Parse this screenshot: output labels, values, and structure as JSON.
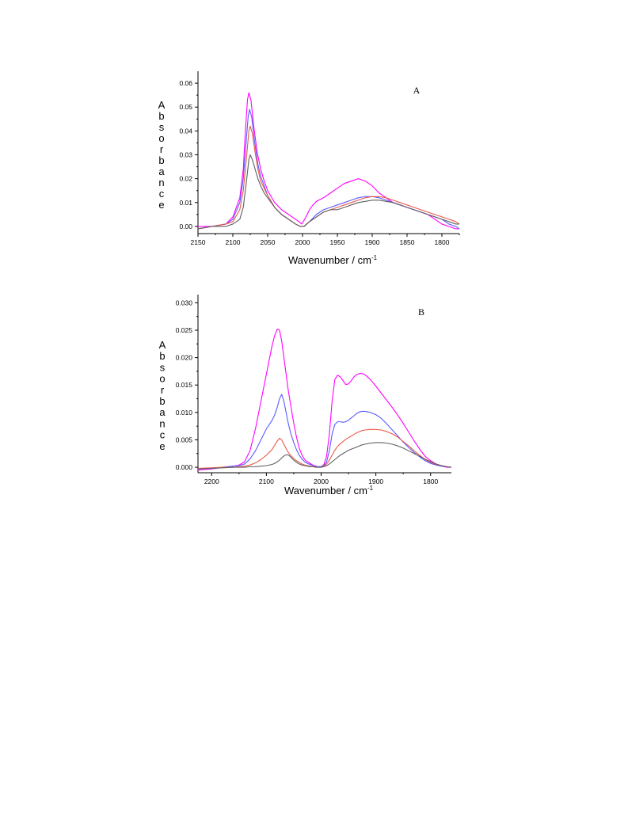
{
  "chart_data": [
    {
      "type": "line",
      "panel_label": "A",
      "xlabel": "Wavenumber / cm",
      "xlabel_sup": "-1",
      "ylabel": "Absorbance",
      "xlim": [
        2150,
        1775
      ],
      "ylim": [
        -0.003,
        0.065
      ],
      "xticks": [
        2150,
        2100,
        2050,
        2000,
        1950,
        1900,
        1850,
        1800
      ],
      "yticks": [
        0.0,
        0.01,
        0.02,
        0.03,
        0.04,
        0.05,
        0.06
      ],
      "ytick_labels": [
        "0.00",
        "0.01",
        "0.02",
        "0.03",
        "0.04",
        "0.05",
        "0.06"
      ],
      "grid": false,
      "series": [
        {
          "color": "#ff00ff",
          "x": [
            2150,
            2130,
            2110,
            2100,
            2090,
            2085,
            2082,
            2079,
            2077,
            2074,
            2070,
            2065,
            2060,
            2055,
            2050,
            2040,
            2030,
            2020,
            2010,
            2005,
            2001,
            1995,
            1990,
            1985,
            1980,
            1970,
            1960,
            1950,
            1940,
            1930,
            1920,
            1910,
            1900,
            1890,
            1880,
            1870,
            1860,
            1850,
            1840,
            1830,
            1820,
            1810,
            1800,
            1790,
            1780,
            1775
          ],
          "y": [
            0.0,
            0.0,
            0.001,
            0.004,
            0.012,
            0.024,
            0.04,
            0.053,
            0.056,
            0.053,
            0.042,
            0.031,
            0.024,
            0.019,
            0.015,
            0.01,
            0.007,
            0.005,
            0.003,
            0.002,
            0.001,
            0.004,
            0.007,
            0.009,
            0.0105,
            0.012,
            0.014,
            0.016,
            0.018,
            0.019,
            0.02,
            0.019,
            0.017,
            0.014,
            0.012,
            0.01,
            0.009,
            0.008,
            0.007,
            0.006,
            0.005,
            0.003,
            0.001,
            0.0,
            -0.001,
            -0.001
          ]
        },
        {
          "color": "#5a5aff",
          "x": [
            2150,
            2130,
            2110,
            2100,
            2090,
            2085,
            2081,
            2078,
            2076,
            2073,
            2069,
            2064,
            2060,
            2055,
            2050,
            2040,
            2030,
            2020,
            2010,
            2003,
            1998,
            1990,
            1980,
            1970,
            1960,
            1950,
            1940,
            1930,
            1920,
            1910,
            1900,
            1890,
            1880,
            1870,
            1860,
            1850,
            1840,
            1830,
            1820,
            1810,
            1800,
            1790,
            1780,
            1775
          ],
          "y": [
            -0.001,
            0.0,
            0.001,
            0.003,
            0.01,
            0.02,
            0.035,
            0.046,
            0.049,
            0.046,
            0.036,
            0.026,
            0.021,
            0.017,
            0.013,
            0.008,
            0.005,
            0.003,
            0.001,
            0.0,
            0.0,
            0.002,
            0.005,
            0.007,
            0.008,
            0.009,
            0.01,
            0.011,
            0.012,
            0.0125,
            0.0125,
            0.012,
            0.011,
            0.01,
            0.009,
            0.008,
            0.007,
            0.006,
            0.005,
            0.004,
            0.003,
            0.001,
            0.0,
            -0.001
          ]
        },
        {
          "color": "#e85a4a",
          "x": [
            2150,
            2130,
            2110,
            2100,
            2090,
            2085,
            2080,
            2077,
            2075,
            2072,
            2068,
            2064,
            2060,
            2055,
            2050,
            2040,
            2030,
            2020,
            2010,
            2003,
            1998,
            1990,
            1980,
            1970,
            1960,
            1950,
            1940,
            1930,
            1920,
            1910,
            1900,
            1890,
            1880,
            1870,
            1860,
            1850,
            1840,
            1830,
            1820,
            1810,
            1800,
            1790,
            1780,
            1775
          ],
          "y": [
            -0.001,
            0.0,
            0.001,
            0.002,
            0.007,
            0.015,
            0.03,
            0.04,
            0.042,
            0.039,
            0.031,
            0.024,
            0.019,
            0.016,
            0.013,
            0.008,
            0.005,
            0.003,
            0.001,
            0.0,
            0.0,
            0.002,
            0.004,
            0.006,
            0.007,
            0.008,
            0.009,
            0.01,
            0.011,
            0.012,
            0.0125,
            0.0125,
            0.012,
            0.011,
            0.01,
            0.009,
            0.008,
            0.007,
            0.006,
            0.005,
            0.004,
            0.003,
            0.002,
            0.001
          ]
        },
        {
          "color": "#606060",
          "x": [
            2150,
            2130,
            2110,
            2100,
            2090,
            2085,
            2080,
            2077,
            2075,
            2072,
            2068,
            2064,
            2060,
            2055,
            2050,
            2040,
            2030,
            2020,
            2010,
            2003,
            1998,
            1990,
            1980,
            1970,
            1960,
            1950,
            1940,
            1930,
            1920,
            1910,
            1900,
            1890,
            1880,
            1870,
            1860,
            1850,
            1840,
            1830,
            1820,
            1810,
            1800,
            1790,
            1780,
            1775
          ],
          "y": [
            -0.001,
            0.0,
            0.0,
            0.001,
            0.003,
            0.008,
            0.02,
            0.028,
            0.03,
            0.028,
            0.024,
            0.02,
            0.017,
            0.014,
            0.012,
            0.008,
            0.005,
            0.003,
            0.001,
            0.0,
            0.0,
            0.002,
            0.004,
            0.006,
            0.007,
            0.007,
            0.008,
            0.009,
            0.01,
            0.0105,
            0.011,
            0.011,
            0.0105,
            0.01,
            0.009,
            0.008,
            0.007,
            0.006,
            0.005,
            0.004,
            0.003,
            0.002,
            0.001,
            0.001
          ]
        }
      ]
    },
    {
      "type": "line",
      "panel_label": "B",
      "xlabel": "Wavenumber / cm",
      "xlabel_sup": "-1",
      "ylabel": "Absorbance",
      "xlim": [
        2225,
        1762
      ],
      "ylim": [
        -0.001,
        0.0315
      ],
      "xticks": [
        2200,
        2100,
        2000,
        1900,
        1800
      ],
      "yticks": [
        0.0,
        0.005,
        0.01,
        0.015,
        0.02,
        0.025,
        0.03
      ],
      "ytick_labels": [
        "0.000",
        "0.005",
        "0.010",
        "0.015",
        "0.020",
        "0.025",
        "0.030"
      ],
      "grid": false,
      "series": [
        {
          "color": "#ff00ff",
          "x": [
            2225,
            2200,
            2180,
            2160,
            2150,
            2140,
            2130,
            2120,
            2110,
            2100,
            2090,
            2085,
            2080,
            2076,
            2072,
            2068,
            2064,
            2060,
            2055,
            2050,
            2045,
            2040,
            2035,
            2030,
            2025,
            2020,
            2015,
            2010,
            2005,
            2000,
            1995,
            1990,
            1985,
            1980,
            1975,
            1970,
            1965,
            1960,
            1955,
            1950,
            1945,
            1940,
            1935,
            1930,
            1925,
            1920,
            1910,
            1900,
            1890,
            1880,
            1870,
            1860,
            1850,
            1840,
            1830,
            1820,
            1810,
            1800,
            1790,
            1780,
            1770,
            1762
          ],
          "y": [
            -0.0005,
            -0.0003,
            0.0,
            0.0002,
            0.0004,
            0.001,
            0.003,
            0.007,
            0.012,
            0.017,
            0.022,
            0.024,
            0.0252,
            0.025,
            0.023,
            0.02,
            0.017,
            0.014,
            0.011,
            0.008,
            0.0055,
            0.0035,
            0.0022,
            0.0014,
            0.001,
            0.0007,
            0.0004,
            0.0002,
            0.0001,
            0.0001,
            0.0005,
            0.002,
            0.006,
            0.012,
            0.016,
            0.0168,
            0.0165,
            0.0158,
            0.0151,
            0.0152,
            0.0158,
            0.0165,
            0.0169,
            0.0171,
            0.0171,
            0.0169,
            0.016,
            0.0148,
            0.0135,
            0.0122,
            0.0109,
            0.0095,
            0.008,
            0.0064,
            0.0048,
            0.0033,
            0.002,
            0.0012,
            0.0006,
            0.0002,
            0.0,
            0.0
          ]
        },
        {
          "color": "#5a5aff",
          "x": [
            2225,
            2200,
            2180,
            2160,
            2150,
            2140,
            2130,
            2120,
            2110,
            2100,
            2090,
            2085,
            2080,
            2076,
            2072,
            2068,
            2064,
            2060,
            2055,
            2050,
            2045,
            2040,
            2035,
            2030,
            2025,
            2020,
            2015,
            2010,
            2005,
            2000,
            1995,
            1990,
            1985,
            1980,
            1975,
            1970,
            1965,
            1960,
            1955,
            1950,
            1945,
            1940,
            1935,
            1930,
            1925,
            1920,
            1910,
            1900,
            1890,
            1880,
            1870,
            1860,
            1850,
            1840,
            1830,
            1820,
            1810,
            1800,
            1790,
            1780,
            1770,
            1762
          ],
          "y": [
            -0.0003,
            -0.0002,
            0.0,
            0.0002,
            0.0003,
            0.0006,
            0.0015,
            0.003,
            0.005,
            0.007,
            0.0085,
            0.0095,
            0.011,
            0.0125,
            0.0133,
            0.012,
            0.01,
            0.008,
            0.006,
            0.0045,
            0.0032,
            0.0022,
            0.0015,
            0.001,
            0.0007,
            0.0005,
            0.0003,
            0.0002,
            0.0001,
            0.0001,
            0.0003,
            0.001,
            0.003,
            0.006,
            0.0078,
            0.0083,
            0.0083,
            0.0082,
            0.0083,
            0.0086,
            0.009,
            0.0094,
            0.0098,
            0.0101,
            0.0102,
            0.0102,
            0.01,
            0.0096,
            0.0089,
            0.0079,
            0.0068,
            0.0057,
            0.0046,
            0.0036,
            0.0027,
            0.0019,
            0.0012,
            0.0007,
            0.0004,
            0.0002,
            0.0001,
            0.0
          ]
        },
        {
          "color": "#e85a4a",
          "x": [
            2225,
            2200,
            2180,
            2160,
            2150,
            2140,
            2130,
            2120,
            2110,
            2100,
            2090,
            2085,
            2080,
            2076,
            2072,
            2068,
            2064,
            2060,
            2055,
            2050,
            2045,
            2040,
            2035,
            2030,
            2025,
            2020,
            2015,
            2010,
            2005,
            2000,
            1995,
            1990,
            1985,
            1980,
            1975,
            1970,
            1965,
            1960,
            1955,
            1950,
            1945,
            1940,
            1935,
            1930,
            1925,
            1920,
            1910,
            1900,
            1890,
            1880,
            1870,
            1860,
            1850,
            1840,
            1830,
            1820,
            1810,
            1800,
            1790,
            1780,
            1770,
            1762
          ],
          "y": [
            -0.0002,
            -0.0001,
            0.0,
            0.0,
            0.0001,
            0.0002,
            0.0004,
            0.0008,
            0.0014,
            0.0022,
            0.0032,
            0.004,
            0.0048,
            0.0053,
            0.005,
            0.0042,
            0.0034,
            0.0027,
            0.0021,
            0.0016,
            0.0012,
            0.0009,
            0.0006,
            0.0004,
            0.0003,
            0.0002,
            0.0001,
            0.0001,
            0.0,
            0.0,
            0.0002,
            0.0006,
            0.0013,
            0.0022,
            0.0031,
            0.0038,
            0.0043,
            0.0047,
            0.0051,
            0.0054,
            0.0057,
            0.006,
            0.0063,
            0.0065,
            0.0067,
            0.0068,
            0.0069,
            0.0069,
            0.0068,
            0.0065,
            0.0061,
            0.0055,
            0.0047,
            0.0039,
            0.003,
            0.0022,
            0.0014,
            0.0009,
            0.0005,
            0.0003,
            0.0001,
            0.0
          ]
        },
        {
          "color": "#606060",
          "x": [
            2225,
            2200,
            2180,
            2160,
            2150,
            2140,
            2130,
            2120,
            2110,
            2100,
            2090,
            2085,
            2080,
            2075,
            2070,
            2066,
            2062,
            2058,
            2054,
            2050,
            2045,
            2040,
            2035,
            2030,
            2025,
            2020,
            2015,
            2010,
            2005,
            2000,
            1995,
            1990,
            1985,
            1980,
            1975,
            1970,
            1965,
            1960,
            1955,
            1950,
            1945,
            1940,
            1935,
            1930,
            1925,
            1920,
            1910,
            1900,
            1890,
            1880,
            1870,
            1860,
            1850,
            1840,
            1830,
            1820,
            1810,
            1800,
            1790,
            1780,
            1770,
            1762
          ],
          "y": [
            -0.0003,
            -0.0002,
            -0.0001,
            0.0,
            0.0,
            0.0,
            0.0001,
            0.0001,
            0.0002,
            0.0003,
            0.0005,
            0.0007,
            0.001,
            0.0014,
            0.0019,
            0.0022,
            0.0023,
            0.0021,
            0.0017,
            0.0013,
            0.0009,
            0.0006,
            0.0004,
            0.0003,
            0.0002,
            0.0001,
            0.0001,
            0.0,
            0.0,
            0.0,
            0.0001,
            0.0003,
            0.0006,
            0.001,
            0.0014,
            0.0018,
            0.0022,
            0.0025,
            0.0028,
            0.0031,
            0.0033,
            0.0035,
            0.0037,
            0.0039,
            0.0041,
            0.0042,
            0.0044,
            0.0045,
            0.0045,
            0.0044,
            0.0042,
            0.0039,
            0.0035,
            0.003,
            0.0025,
            0.002,
            0.0015,
            0.001,
            0.0006,
            0.0003,
            0.0001,
            0.0
          ]
        }
      ]
    }
  ]
}
